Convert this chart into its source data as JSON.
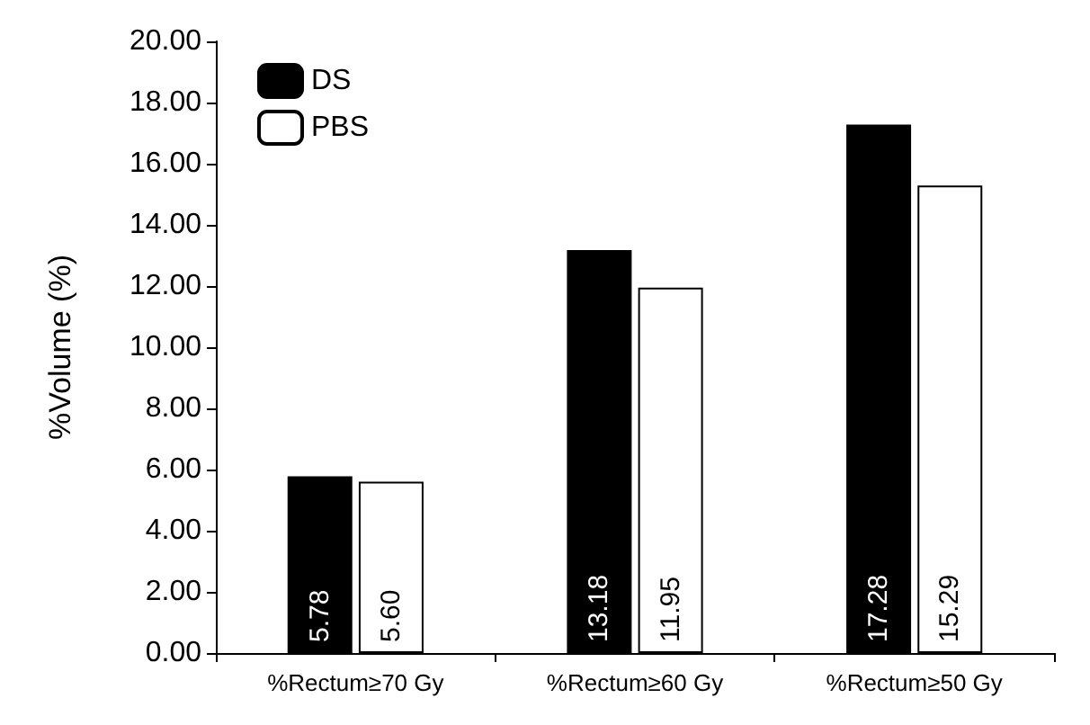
{
  "chart_data": {
    "type": "bar",
    "ylabel": "%Volume (%)",
    "categories": [
      "%Rectum≥70 Gy",
      "%Rectum≥60 Gy",
      "%Rectum≥50 Gy"
    ],
    "series": [
      {
        "name": "DS",
        "color": "#000000",
        "values": [
          5.78,
          13.18,
          17.28
        ],
        "value_labels": [
          "5.78",
          "13.18",
          "17.28"
        ]
      },
      {
        "name": "PBS",
        "color": "#ffffff",
        "values": [
          5.6,
          11.95,
          15.29
        ],
        "value_labels": [
          "5.60",
          "11.95",
          "15.29"
        ]
      }
    ],
    "ylim": [
      0,
      20
    ],
    "yticks": [
      {
        "value": 0,
        "label": "0.00"
      },
      {
        "value": 2,
        "label": "2.00"
      },
      {
        "value": 4,
        "label": "4.00"
      },
      {
        "value": 6,
        "label": "6.00"
      },
      {
        "value": 8,
        "label": "8.00"
      },
      {
        "value": 10,
        "label": "10.00"
      },
      {
        "value": 12,
        "label": "12.00"
      },
      {
        "value": 14,
        "label": "14.00"
      },
      {
        "value": 16,
        "label": "16.00"
      },
      {
        "value": 18,
        "label": "18.00"
      },
      {
        "value": 20,
        "label": "20.00"
      }
    ],
    "grid": false,
    "legend": "top left"
  }
}
